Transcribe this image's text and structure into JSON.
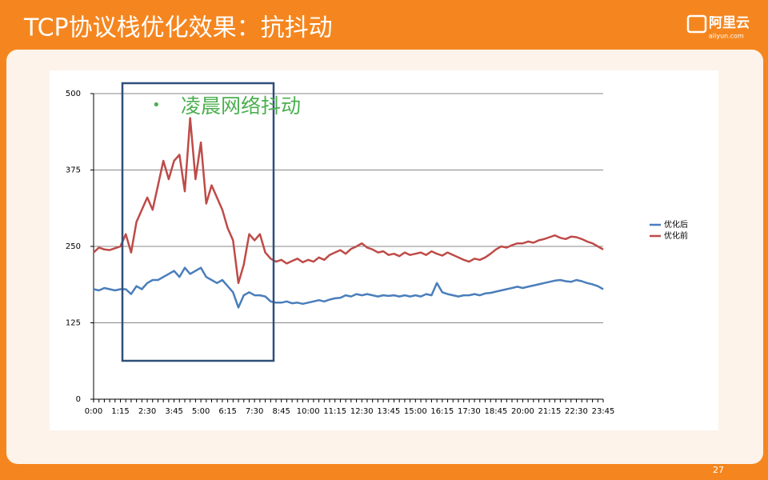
{
  "slide": {
    "title": "TCP协议栈优化效果：抗抖动",
    "logo": "阿里云",
    "logo_sub": "aliyun.com",
    "page_number": "27"
  },
  "chart_data": {
    "type": "line",
    "categories": [
      "0:00",
      null,
      null,
      null,
      null,
      "1:15",
      null,
      null,
      null,
      null,
      "2:30",
      null,
      null,
      null,
      null,
      "3:45",
      null,
      null,
      null,
      null,
      "5:00",
      null,
      null,
      null,
      null,
      "6:15",
      null,
      null,
      null,
      null,
      "7:30",
      null,
      null,
      null,
      null,
      "8:45",
      null,
      null,
      null,
      null,
      "10:00",
      null,
      null,
      null,
      null,
      "11:15",
      null,
      null,
      null,
      null,
      "12:30",
      null,
      null,
      null,
      null,
      "13:45",
      null,
      null,
      null,
      null,
      "15:00",
      null,
      null,
      null,
      null,
      "16:15",
      null,
      null,
      null,
      null,
      "17:30",
      null,
      null,
      null,
      null,
      "18:45",
      null,
      null,
      null,
      null,
      "20:00",
      null,
      null,
      null,
      null,
      "21:15",
      null,
      null,
      null,
      null,
      "22:30",
      null,
      null,
      null,
      null,
      "23:45"
    ],
    "series": [
      {
        "name": "优化后",
        "color": "#4a7ebb",
        "values": [
          180,
          178,
          182,
          180,
          178,
          180,
          180,
          172,
          185,
          180,
          190,
          195,
          195,
          200,
          205,
          210,
          200,
          215,
          205,
          210,
          215,
          200,
          195,
          190,
          195,
          185,
          175,
          150,
          170,
          175,
          170,
          170,
          168,
          160,
          158,
          158,
          160,
          157,
          158,
          156,
          158,
          160,
          162,
          160,
          163,
          165,
          166,
          170,
          168,
          172,
          170,
          172,
          170,
          168,
          170,
          169,
          170,
          168,
          170,
          168,
          170,
          168,
          172,
          170,
          190,
          175,
          172,
          170,
          168,
          170,
          170,
          172,
          170,
          173,
          174,
          176,
          178,
          180,
          182,
          184,
          182,
          184,
          186,
          188,
          190,
          192,
          194,
          195,
          193,
          192,
          195,
          193,
          190,
          188,
          185,
          180
        ]
      },
      {
        "name": "优化前",
        "color": "#be4b48",
        "values": [
          240,
          248,
          245,
          244,
          247,
          250,
          270,
          240,
          290,
          310,
          330,
          310,
          350,
          390,
          360,
          390,
          400,
          340,
          460,
          360,
          420,
          320,
          350,
          330,
          310,
          280,
          260,
          190,
          220,
          270,
          260,
          270,
          240,
          230,
          225,
          228,
          222,
          226,
          230,
          224,
          228,
          225,
          232,
          228,
          236,
          240,
          244,
          238,
          246,
          250,
          255,
          248,
          245,
          240,
          242,
          236,
          238,
          234,
          240,
          236,
          238,
          240,
          236,
          242,
          238,
          235,
          240,
          236,
          232,
          228,
          225,
          230,
          228,
          232,
          238,
          245,
          250,
          248,
          252,
          255,
          255,
          258,
          256,
          260,
          262,
          265,
          268,
          264,
          262,
          266,
          265,
          262,
          258,
          255,
          250,
          245
        ]
      }
    ],
    "ylim": [
      0,
      500
    ],
    "yticks": [
      0,
      125,
      250,
      375,
      500
    ],
    "grid": true,
    "legend": "right",
    "annotations": [
      "凌晨网络抖动"
    ]
  }
}
